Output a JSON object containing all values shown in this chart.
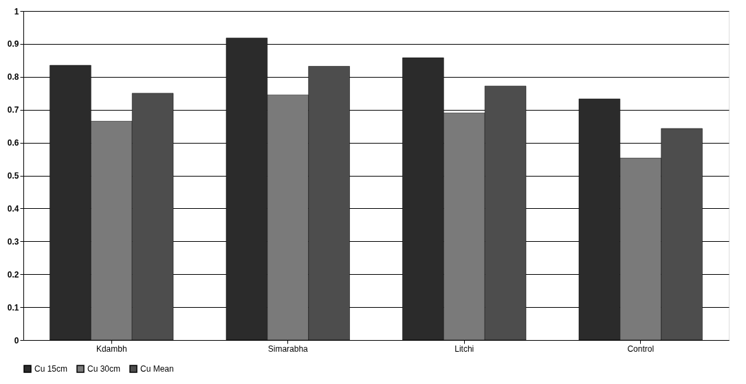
{
  "chart_data": {
    "type": "bar",
    "categories": [
      "Kdambh",
      "Simarabha",
      "Litchi",
      "Control"
    ],
    "series": [
      {
        "name": "Cu 15cm",
        "color": "#2b2b2b",
        "values": [
          0.835,
          0.918,
          0.858,
          0.733
        ]
      },
      {
        "name": "Cu 30cm",
        "color": "#7a7a7a",
        "values": [
          0.665,
          0.745,
          0.69,
          0.553
        ]
      },
      {
        "name": "Cu Mean",
        "color": "#4d4d4d",
        "values": [
          0.75,
          0.832,
          0.772,
          0.643
        ]
      }
    ],
    "ylim": [
      0,
      1
    ],
    "yticks": [
      0,
      0.1,
      0.2,
      0.3,
      0.4,
      0.5,
      0.6,
      0.7,
      0.8,
      0.9,
      1
    ],
    "grid": "y",
    "legend": "bottom"
  }
}
